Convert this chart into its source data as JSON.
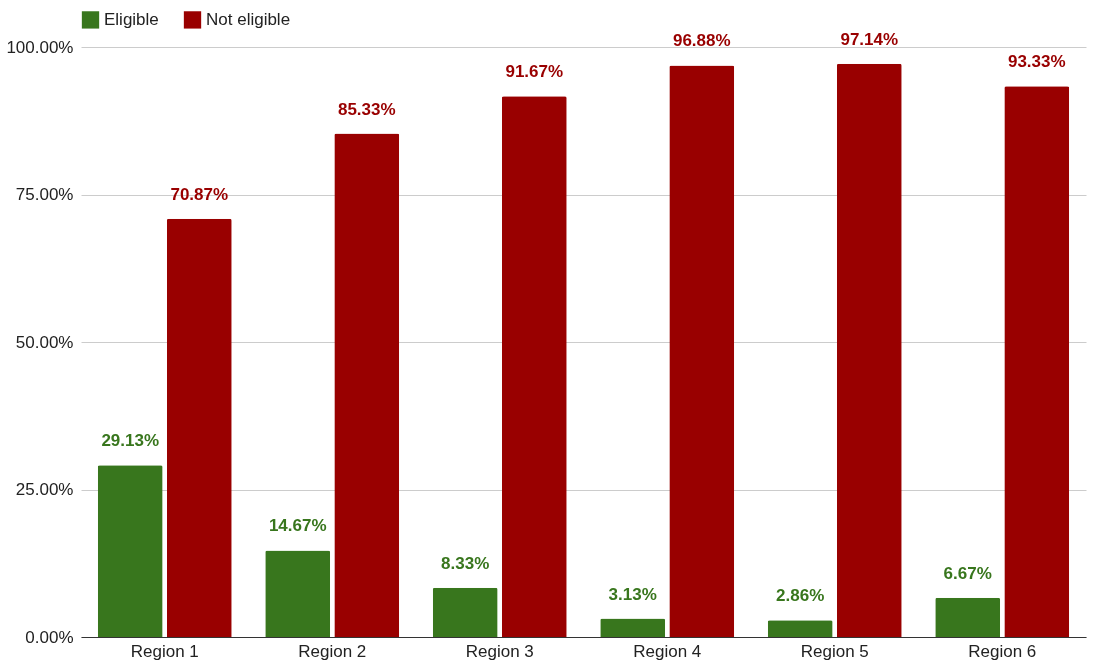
{
  "chart_data": {
    "type": "bar",
    "categories": [
      "Region 1",
      "Region 2",
      "Region 3",
      "Region 4",
      "Region 5",
      "Region 6"
    ],
    "series": [
      {
        "name": "Eligible",
        "color": "#38761d",
        "values": [
          29.13,
          14.67,
          8.33,
          3.13,
          2.86,
          6.67
        ],
        "value_labels": [
          "29.13%",
          "14.67%",
          "8.33%",
          "3.13%",
          "2.86%",
          "6.67%"
        ]
      },
      {
        "name": "Not eligible",
        "color": "#990000",
        "values": [
          70.87,
          85.33,
          91.67,
          96.88,
          97.14,
          93.33
        ],
        "value_labels": [
          "70.87%",
          "85.33%",
          "91.67%",
          "96.88%",
          "97.14%",
          "93.33%"
        ]
      }
    ],
    "ylim": [
      0,
      100
    ],
    "yticks": [
      {
        "value": 0,
        "label": "0.00%"
      },
      {
        "value": 25,
        "label": "25.00%"
      },
      {
        "value": 50,
        "label": "50.00%"
      },
      {
        "value": 75,
        "label": "75.00%"
      },
      {
        "value": 100,
        "label": "100.00%"
      }
    ],
    "grid": "y",
    "legend": "top"
  }
}
